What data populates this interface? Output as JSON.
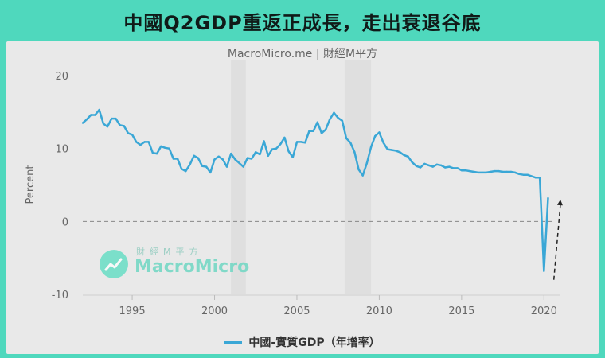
{
  "banner": {
    "title": "中國Q2GDP重返正成長，走出衰退谷底"
  },
  "subtitle": "MacroMicro.me | 財經M平方",
  "watermark": {
    "cn": "財經M平方",
    "en": "MacroMicro"
  },
  "legend": {
    "label": "中國-實質GDP（年增率）"
  },
  "colors": {
    "background": "#4fd8bd",
    "panel": "#e9e9e9",
    "series": "#3aa7d6",
    "recession": "#dcdcdc"
  },
  "chart_data": {
    "type": "line",
    "xlabel": "",
    "ylabel": "Percent",
    "xlim": [
      1992,
      2021
    ],
    "ylim": [
      -10,
      20
    ],
    "yticks": [
      20,
      10,
      0,
      -10
    ],
    "xticks": [
      1995,
      2000,
      2005,
      2010,
      2015,
      2020
    ],
    "zero_line": "dashed",
    "shaded_periods": [
      [
        2001,
        2001.9
      ],
      [
        2007.9,
        2009.5
      ]
    ],
    "annotations": [
      {
        "type": "arrow",
        "from": [
          2020.6,
          -8
        ],
        "to": [
          2021.0,
          3
        ]
      }
    ],
    "series": [
      {
        "name": "中國-實質GDP（年增率）",
        "x": [
          1992.0,
          1992.25,
          1992.5,
          1992.75,
          1993.0,
          1993.25,
          1993.5,
          1993.75,
          1994.0,
          1994.25,
          1994.5,
          1994.75,
          1995.0,
          1995.25,
          1995.5,
          1995.75,
          1996.0,
          1996.25,
          1996.5,
          1996.75,
          1997.0,
          1997.25,
          1997.5,
          1997.75,
          1998.0,
          1998.25,
          1998.5,
          1998.75,
          1999.0,
          1999.25,
          1999.5,
          1999.75,
          2000.0,
          2000.25,
          2000.5,
          2000.75,
          2001.0,
          2001.25,
          2001.5,
          2001.75,
          2002.0,
          2002.25,
          2002.5,
          2002.75,
          2003.0,
          2003.25,
          2003.5,
          2003.75,
          2004.0,
          2004.25,
          2004.5,
          2004.75,
          2005.0,
          2005.25,
          2005.5,
          2005.75,
          2006.0,
          2006.25,
          2006.5,
          2006.75,
          2007.0,
          2007.25,
          2007.5,
          2007.75,
          2008.0,
          2008.25,
          2008.5,
          2008.75,
          2009.0,
          2009.25,
          2009.5,
          2009.75,
          2010.0,
          2010.25,
          2010.5,
          2010.75,
          2011.0,
          2011.25,
          2011.5,
          2011.75,
          2012.0,
          2012.25,
          2012.5,
          2012.75,
          2013.0,
          2013.25,
          2013.5,
          2013.75,
          2014.0,
          2014.25,
          2014.5,
          2014.75,
          2015.0,
          2015.25,
          2015.5,
          2015.75,
          2016.0,
          2016.25,
          2016.5,
          2016.75,
          2017.0,
          2017.25,
          2017.5,
          2017.75,
          2018.0,
          2018.25,
          2018.5,
          2018.75,
          2019.0,
          2019.25,
          2019.5,
          2019.75,
          2020.0,
          2020.25
        ],
        "values": [
          13.5,
          14.0,
          14.6,
          14.6,
          15.3,
          13.4,
          13.0,
          14.1,
          14.1,
          13.2,
          13.1,
          12.1,
          11.9,
          10.9,
          10.5,
          10.9,
          10.9,
          9.4,
          9.3,
          10.3,
          10.1,
          10.0,
          8.6,
          8.6,
          7.2,
          6.9,
          7.8,
          9.0,
          8.7,
          7.6,
          7.5,
          6.7,
          8.5,
          8.9,
          8.5,
          7.5,
          9.3,
          8.5,
          8.0,
          7.5,
          8.7,
          8.6,
          9.5,
          9.2,
          11.0,
          9.0,
          9.9,
          10.0,
          10.6,
          11.5,
          9.6,
          8.8,
          10.9,
          10.9,
          10.8,
          12.4,
          12.4,
          13.6,
          12.1,
          12.6,
          14.0,
          14.9,
          14.2,
          13.8,
          11.4,
          10.8,
          9.5,
          7.1,
          6.3,
          8.0,
          10.2,
          11.7,
          12.2,
          10.8,
          9.9,
          9.8,
          9.7,
          9.5,
          9.1,
          8.9,
          8.1,
          7.6,
          7.4,
          7.9,
          7.7,
          7.5,
          7.8,
          7.7,
          7.4,
          7.5,
          7.3,
          7.3,
          7.0,
          7.0,
          6.9,
          6.8,
          6.7,
          6.7,
          6.7,
          6.8,
          6.9,
          6.9,
          6.8,
          6.8,
          6.8,
          6.7,
          6.5,
          6.4,
          6.4,
          6.2,
          6.0,
          6.0,
          -6.8,
          3.2
        ]
      }
    ]
  }
}
